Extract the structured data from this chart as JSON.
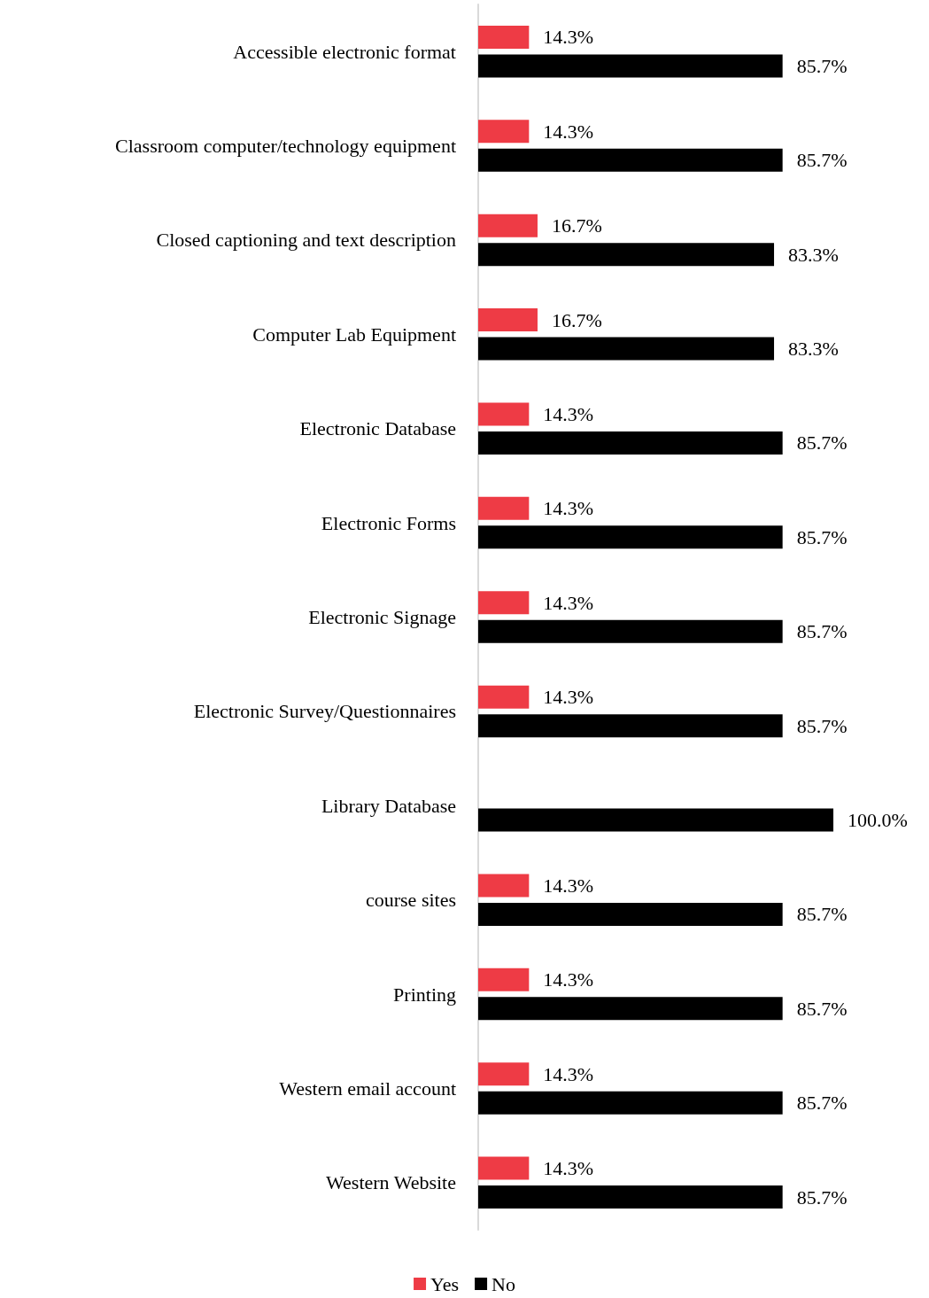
{
  "chart_data": {
    "type": "bar",
    "orientation": "horizontal",
    "categories": [
      "Accessible electronic format",
      "Classroom computer/technology equipment",
      "Closed captioning and text description",
      "Computer Lab Equipment",
      "Electronic Database",
      "Electronic Forms",
      "Electronic Signage",
      "Electronic Survey/Questionnaires",
      "Library Database",
      "course sites",
      "Printing",
      "Western email account",
      "Western Website"
    ],
    "series": [
      {
        "name": "Yes",
        "color": "#ee3b45",
        "values": [
          14.3,
          14.3,
          16.7,
          16.7,
          14.3,
          14.3,
          14.3,
          14.3,
          0,
          14.3,
          14.3,
          14.3,
          14.3
        ],
        "value_labels": [
          "14.3%",
          "14.3%",
          "16.7%",
          "16.7%",
          "14.3%",
          "14.3%",
          "14.3%",
          "14.3%",
          null,
          "14.3%",
          "14.3%",
          "14.3%",
          "14.3%"
        ]
      },
      {
        "name": "No",
        "color": "#000000",
        "values": [
          85.7,
          85.7,
          83.3,
          83.3,
          85.7,
          85.7,
          85.7,
          85.7,
          100.0,
          85.7,
          85.7,
          85.7,
          85.7
        ],
        "value_labels": [
          "85.7%",
          "85.7%",
          "83.3%",
          "83.3%",
          "85.7%",
          "85.7%",
          "85.7%",
          "85.7%",
          "100.0%",
          "85.7%",
          "85.7%",
          "85.7%",
          "85.7%"
        ]
      }
    ],
    "xlim": [
      0,
      100
    ],
    "legend": "bottom"
  }
}
